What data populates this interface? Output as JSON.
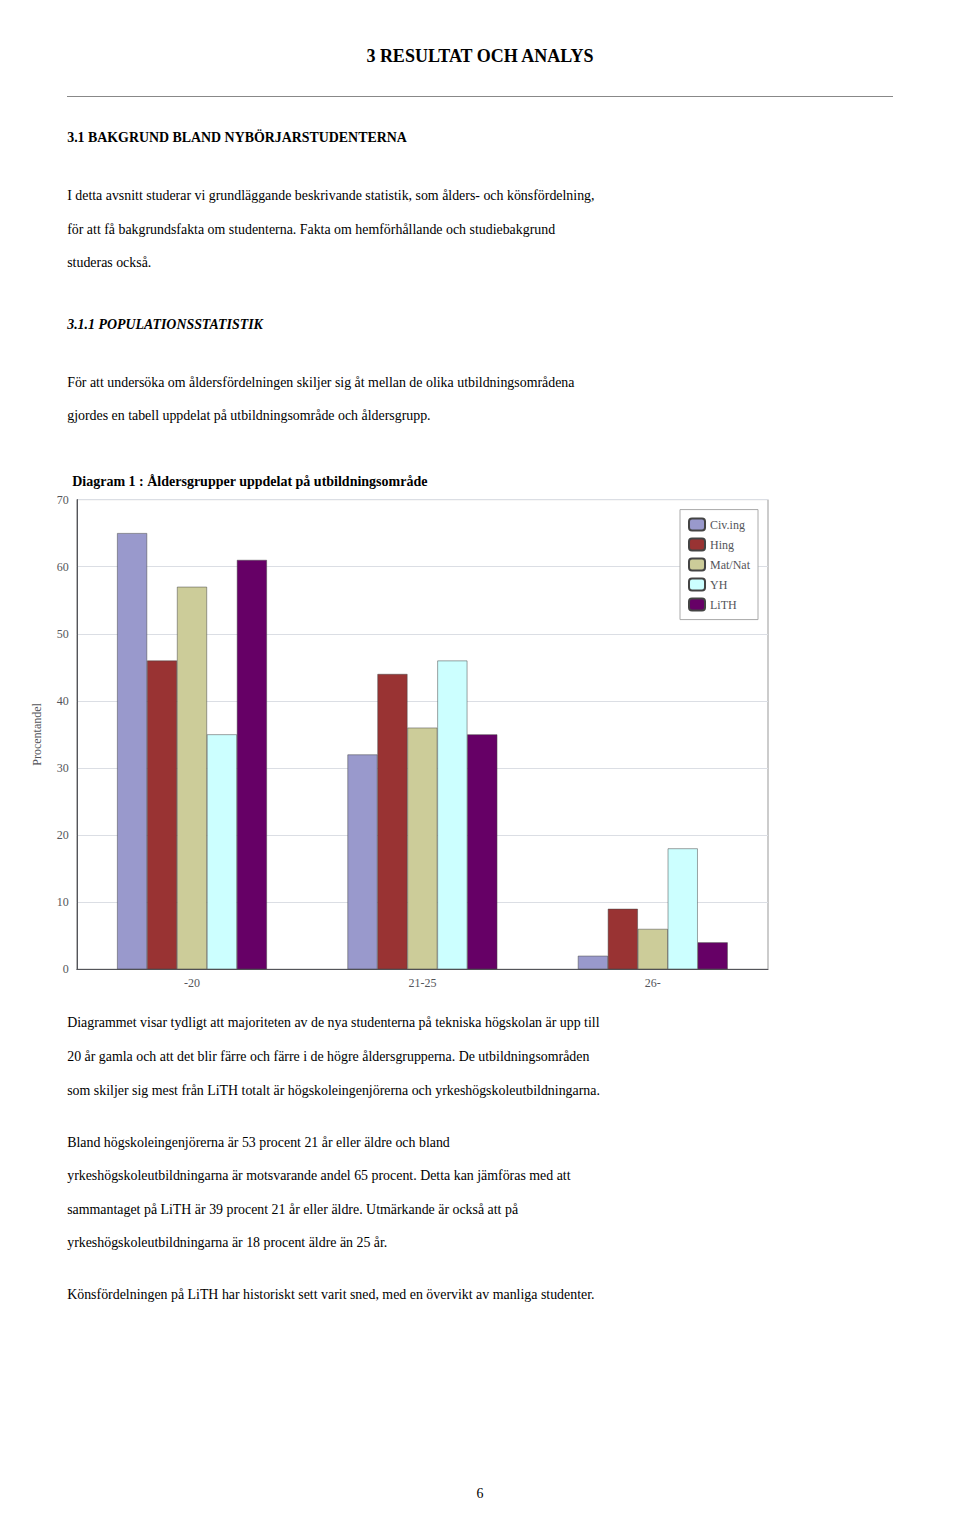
{
  "page_title": "3    RESULTAT OCH ANALYS",
  "section_heading": "3.1    BAKGRUND BLAND NYBÖRJARSTUDENTERNA",
  "intro_lines": [
    "I detta avsnitt studerar vi grundläggande beskrivande statistik, som ålders- och könsfördelning,",
    "för att få bakgrundsfakta om studenterna. Fakta om hemförhållande och studiebakgrund",
    "studeras också."
  ],
  "subsection_heading": "3.1.1    POPULATIONSSTATISTIK",
  "subsection_lines": [
    "För att undersöka om åldersfördelningen skiljer sig åt mellan de olika utbildningsområdena",
    "gjordes en tabell uppdelat på utbildningsområde och åldersgrupp."
  ],
  "body_paragraphs": [
    [
      "Diagrammet visar tydligt att majoriteten av de nya studenterna på tekniska högskolan är upp till",
      "20 år gamla och att det blir färre och färre i de högre åldersgrupperna. De utbildningsområden",
      "som skiljer sig mest från LiTH totalt är högskoleingenjörerna och yrkeshögskoleutbildningarna."
    ],
    [
      "Bland högskoleingenjörerna är 53 procent 21 år eller äldre och bland",
      "yrkeshögskoleutbildningarna är motsvarande andel 65 procent. Detta kan jämföras med att",
      "sammantaget på LiTH är 39 procent 21 år eller äldre. Utmärkande är också att på",
      "yrkeshögskoleutbildningarna är 18 procent äldre än 25 år."
    ],
    [
      "Könsfördelningen på LiTH har historiskt sett varit sned, med en övervikt av manliga studenter."
    ]
  ],
  "page_number": "6",
  "chart_data": {
    "type": "bar",
    "title": "Diagram 1 : Åldersgrupper uppdelat på utbildningsområde",
    "ylabel": "Procentandel",
    "categories": [
      "-20",
      "21-25",
      "26-"
    ],
    "series": [
      {
        "name": "Civ.ing",
        "color": "#9999CC",
        "values": [
          65,
          32,
          2
        ]
      },
      {
        "name": "Hing",
        "color": "#993333",
        "values": [
          46,
          44,
          9
        ]
      },
      {
        "name": "Mat/Nat",
        "color": "#CCCC99",
        "values": [
          57,
          36,
          6
        ]
      },
      {
        "name": "YH",
        "color": "#CCFFFF",
        "values": [
          35,
          46,
          18
        ]
      },
      {
        "name": "LiTH",
        "color": "#660066",
        "values": [
          61,
          35,
          4
        ]
      }
    ],
    "ylim": [
      0,
      70
    ],
    "yticks": [
      0,
      10,
      20,
      30,
      40,
      50,
      60,
      70
    ],
    "grid": true,
    "legend": "upper right"
  }
}
